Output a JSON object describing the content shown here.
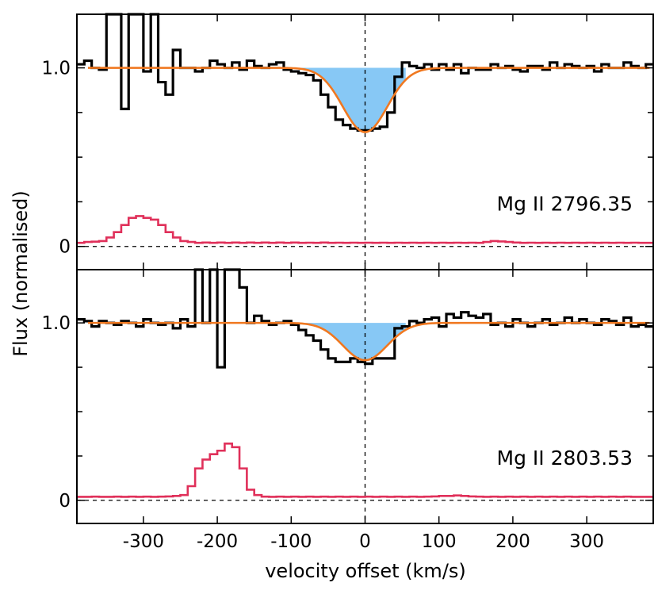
{
  "figure": {
    "ylabel": "Flux (normalised)",
    "xlabel": "velocity offset (km/s)"
  },
  "chart_data": [
    {
      "type": "line",
      "panel": "top",
      "label": "Mg II 2796.35",
      "xlim": [
        -390,
        390
      ],
      "ylim": [
        -0.13,
        1.3
      ],
      "xticks": [
        -300,
        -200,
        -100,
        0,
        100,
        200,
        300
      ],
      "yticks": [
        0,
        1.0
      ],
      "ytick_labels": [
        "0",
        "1.0"
      ],
      "zero_line": 0,
      "model_fit": {
        "center": 0,
        "depth": 0.36,
        "sigma": 30
      },
      "series": [
        {
          "name": "flux",
          "color": "#000000",
          "x": [
            -385,
            -375,
            -365,
            -355,
            -345,
            -335,
            -325,
            -315,
            -305,
            -295,
            -285,
            -275,
            -265,
            -255,
            -245,
            -235,
            -225,
            -215,
            -205,
            -195,
            -185,
            -175,
            -165,
            -155,
            -145,
            -135,
            -125,
            -115,
            -105,
            -95,
            -85,
            -75,
            -65,
            -55,
            -45,
            -35,
            -25,
            -15,
            -5,
            5,
            15,
            25,
            35,
            45,
            55,
            65,
            75,
            85,
            95,
            105,
            115,
            125,
            135,
            145,
            155,
            165,
            175,
            185,
            195,
            205,
            215,
            225,
            235,
            245,
            255,
            265,
            275,
            285,
            295,
            305,
            315,
            325,
            335,
            345,
            355,
            365,
            375,
            385
          ],
          "y": [
            1.02,
            1.04,
            1.0,
            0.99,
            1.3,
            1.3,
            0.77,
            1.3,
            1.3,
            0.98,
            1.3,
            0.92,
            0.85,
            1.1,
            1.0,
            1.0,
            0.98,
            1.0,
            1.04,
            1.02,
            1.0,
            1.03,
            0.99,
            1.04,
            1.01,
            1.0,
            1.02,
            1.03,
            0.99,
            0.98,
            0.97,
            0.96,
            0.93,
            0.85,
            0.78,
            0.71,
            0.68,
            0.66,
            0.65,
            0.65,
            0.66,
            0.67,
            0.75,
            0.95,
            1.03,
            1.01,
            1.0,
            1.02,
            0.99,
            1.02,
            0.99,
            1.02,
            0.97,
            1.0,
            0.99,
            0.99,
            1.02,
            1.0,
            1.01,
            0.99,
            0.98,
            1.01,
            1.01,
            0.99,
            1.03,
            1.0,
            1.02,
            1.01,
            1.0,
            1.01,
            0.98,
            1.02,
            1.0,
            1.0,
            1.03,
            1.01,
            1.0,
            1.02
          ]
        },
        {
          "name": "error",
          "color": "#e0305a",
          "x": [
            -385,
            -375,
            -365,
            -355,
            -345,
            -335,
            -325,
            -315,
            -305,
            -295,
            -285,
            -275,
            -265,
            -255,
            -245,
            -235,
            -225,
            -215,
            -205,
            -195,
            -185,
            -175,
            -165,
            -155,
            -145,
            -135,
            -125,
            -115,
            -105,
            -95,
            -85,
            -75,
            -65,
            -55,
            -45,
            -35,
            -25,
            -15,
            -5,
            5,
            15,
            25,
            35,
            45,
            55,
            65,
            75,
            85,
            95,
            105,
            115,
            125,
            135,
            145,
            155,
            165,
            175,
            185,
            195,
            205,
            215,
            225,
            235,
            245,
            255,
            265,
            275,
            285,
            295,
            305,
            315,
            325,
            335,
            345,
            355,
            365,
            375,
            385
          ],
          "y": [
            0.02,
            0.025,
            0.027,
            0.03,
            0.05,
            0.08,
            0.12,
            0.16,
            0.17,
            0.16,
            0.15,
            0.12,
            0.08,
            0.05,
            0.03,
            0.025,
            0.02,
            0.022,
            0.02,
            0.022,
            0.02,
            0.022,
            0.02,
            0.022,
            0.02,
            0.022,
            0.02,
            0.022,
            0.02,
            0.022,
            0.02,
            0.021,
            0.02,
            0.022,
            0.02,
            0.021,
            0.02,
            0.021,
            0.02,
            0.021,
            0.02,
            0.021,
            0.02,
            0.021,
            0.02,
            0.021,
            0.02,
            0.021,
            0.02,
            0.021,
            0.02,
            0.021,
            0.02,
            0.021,
            0.02,
            0.025,
            0.03,
            0.028,
            0.025,
            0.022,
            0.02,
            0.021,
            0.02,
            0.021,
            0.02,
            0.021,
            0.02,
            0.021,
            0.02,
            0.021,
            0.02,
            0.021,
            0.02,
            0.021,
            0.02,
            0.021,
            0.02,
            0.02
          ]
        }
      ]
    },
    {
      "type": "line",
      "panel": "bottom",
      "label": "Mg II 2803.53",
      "xlim": [
        -390,
        390
      ],
      "ylim": [
        -0.13,
        1.3
      ],
      "xticks": [
        -300,
        -200,
        -100,
        0,
        100,
        200,
        300
      ],
      "xtick_labels": [
        "-300",
        "-200",
        "-100",
        "0",
        "100",
        "200",
        "300"
      ],
      "yticks": [
        0,
        1.0
      ],
      "ytick_labels": [
        "0",
        "1.0"
      ],
      "zero_line": 0,
      "model_fit": {
        "center": 0,
        "depth": 0.21,
        "sigma": 30
      },
      "series": [
        {
          "name": "flux",
          "color": "#000000",
          "x": [
            -385,
            -375,
            -365,
            -355,
            -345,
            -335,
            -325,
            -315,
            -305,
            -295,
            -285,
            -275,
            -265,
            -255,
            -245,
            -235,
            -225,
            -215,
            -205,
            -195,
            -185,
            -175,
            -165,
            -155,
            -145,
            -135,
            -125,
            -115,
            -105,
            -95,
            -85,
            -75,
            -65,
            -55,
            -45,
            -35,
            -25,
            -15,
            -5,
            5,
            15,
            25,
            35,
            45,
            55,
            65,
            75,
            85,
            95,
            105,
            115,
            125,
            135,
            145,
            155,
            165,
            175,
            185,
            195,
            205,
            215,
            225,
            235,
            245,
            255,
            265,
            275,
            285,
            295,
            305,
            315,
            325,
            335,
            345,
            355,
            365,
            375,
            385
          ],
          "y": [
            1.02,
            1.01,
            0.98,
            1.01,
            1.0,
            0.99,
            1.01,
            1.0,
            0.98,
            1.02,
            1.0,
            0.99,
            1.0,
            0.97,
            1.02,
            0.98,
            1.3,
            1.0,
            1.3,
            0.75,
            1.3,
            1.3,
            1.2,
            1.0,
            1.04,
            1.01,
            0.99,
            1.0,
            1.01,
            0.99,
            0.96,
            0.93,
            0.9,
            0.85,
            0.8,
            0.78,
            0.78,
            0.8,
            0.78,
            0.77,
            0.8,
            0.8,
            0.8,
            0.97,
            0.98,
            1.01,
            1.0,
            1.02,
            1.03,
            0.98,
            1.05,
            1.03,
            1.06,
            1.04,
            1.03,
            1.05,
            0.99,
            1.0,
            0.98,
            1.02,
            1.0,
            0.98,
            1.0,
            1.02,
            0.99,
            1.0,
            1.03,
            1.0,
            1.02,
            1.0,
            0.99,
            1.02,
            1.01,
            0.99,
            1.03,
            0.98,
            0.99,
            0.98
          ]
        },
        {
          "name": "error",
          "color": "#e0305a",
          "x": [
            -385,
            -375,
            -365,
            -355,
            -345,
            -335,
            -325,
            -315,
            -305,
            -295,
            -285,
            -275,
            -265,
            -255,
            -245,
            -235,
            -225,
            -215,
            -205,
            -195,
            -185,
            -175,
            -165,
            -155,
            -145,
            -135,
            -125,
            -115,
            -105,
            -95,
            -85,
            -75,
            -65,
            -55,
            -45,
            -35,
            -25,
            -15,
            -5,
            5,
            15,
            25,
            35,
            45,
            55,
            65,
            75,
            85,
            95,
            105,
            115,
            125,
            135,
            145,
            155,
            165,
            175,
            185,
            195,
            205,
            215,
            225,
            235,
            245,
            255,
            265,
            275,
            285,
            295,
            305,
            315,
            325,
            335,
            345,
            355,
            365,
            375,
            385
          ],
          "y": [
            0.02,
            0.02,
            0.021,
            0.02,
            0.02,
            0.021,
            0.02,
            0.021,
            0.02,
            0.021,
            0.02,
            0.021,
            0.022,
            0.025,
            0.03,
            0.08,
            0.18,
            0.23,
            0.26,
            0.28,
            0.32,
            0.3,
            0.18,
            0.06,
            0.03,
            0.021,
            0.02,
            0.021,
            0.02,
            0.021,
            0.02,
            0.021,
            0.02,
            0.021,
            0.02,
            0.021,
            0.02,
            0.021,
            0.02,
            0.021,
            0.02,
            0.021,
            0.02,
            0.021,
            0.02,
            0.021,
            0.02,
            0.021,
            0.022,
            0.025,
            0.025,
            0.028,
            0.025,
            0.022,
            0.021,
            0.02,
            0.021,
            0.02,
            0.021,
            0.02,
            0.021,
            0.02,
            0.021,
            0.02,
            0.021,
            0.02,
            0.021,
            0.02,
            0.021,
            0.02,
            0.021,
            0.02,
            0.021,
            0.02,
            0.021,
            0.02,
            0.02,
            0.02
          ]
        }
      ]
    }
  ],
  "colors": {
    "fit": "#f07820",
    "shade": "#87c8f5",
    "axis": "#000000"
  }
}
